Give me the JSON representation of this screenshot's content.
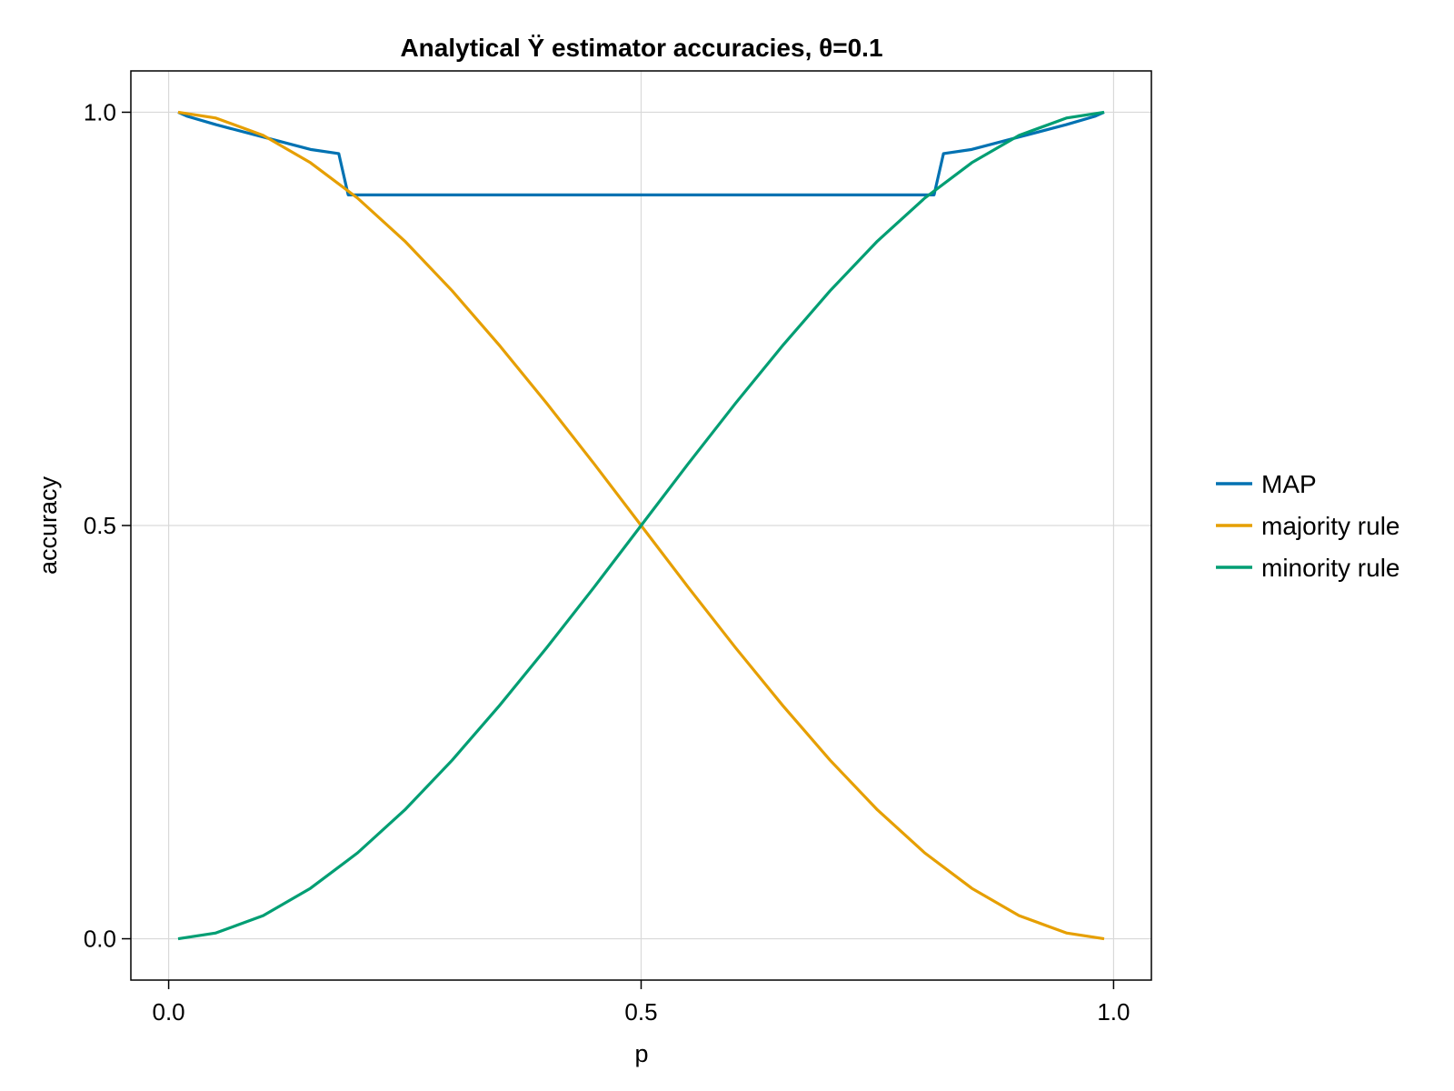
{
  "chart_data": {
    "type": "line",
    "title": "Analytical Ÿ estimator accuracies, θ=0.1",
    "xlabel": "p",
    "ylabel": "accuracy",
    "xlim": [
      -0.04,
      1.04
    ],
    "ylim": [
      -0.05,
      1.05
    ],
    "xticks": [
      {
        "value": 0.0,
        "label": "0.0"
      },
      {
        "value": 0.5,
        "label": "0.5"
      },
      {
        "value": 1.0,
        "label": "1.0"
      }
    ],
    "yticks": [
      {
        "value": 0.0,
        "label": "0.0"
      },
      {
        "value": 0.5,
        "label": "0.5"
      },
      {
        "value": 1.0,
        "label": "1.0"
      }
    ],
    "grid": true,
    "legend_position": "right",
    "series": [
      {
        "name": "MAP",
        "color": "#0072b2",
        "x": [
          0.01,
          0.02,
          0.05,
          0.1,
          0.15,
          0.18,
          0.19,
          0.3,
          0.4,
          0.5,
          0.6,
          0.7,
          0.81,
          0.82,
          0.85,
          0.9,
          0.95,
          0.98,
          0.99
        ],
        "y": [
          1.0,
          0.995,
          0.985,
          0.97,
          0.955,
          0.95,
          0.9,
          0.9,
          0.9,
          0.9,
          0.9,
          0.9,
          0.9,
          0.95,
          0.955,
          0.97,
          0.985,
          0.995,
          1.0
        ]
      },
      {
        "name": "majority rule",
        "color": "#e69f00",
        "x": [
          0.01,
          0.05,
          0.1,
          0.15,
          0.2,
          0.25,
          0.3,
          0.35,
          0.4,
          0.45,
          0.5,
          0.55,
          0.6,
          0.65,
          0.7,
          0.75,
          0.8,
          0.85,
          0.9,
          0.95,
          0.99
        ],
        "y": [
          1.0,
          0.993,
          0.972,
          0.939,
          0.896,
          0.844,
          0.784,
          0.718,
          0.648,
          0.575,
          0.5,
          0.425,
          0.352,
          0.282,
          0.216,
          0.156,
          0.104,
          0.061,
          0.028,
          0.007,
          0.0
        ]
      },
      {
        "name": "minority rule",
        "color": "#009e73",
        "x": [
          0.01,
          0.05,
          0.1,
          0.15,
          0.2,
          0.25,
          0.3,
          0.35,
          0.4,
          0.45,
          0.5,
          0.55,
          0.6,
          0.65,
          0.7,
          0.75,
          0.8,
          0.85,
          0.9,
          0.95,
          0.99
        ],
        "y": [
          0.0,
          0.007,
          0.028,
          0.061,
          0.104,
          0.156,
          0.216,
          0.282,
          0.352,
          0.425,
          0.5,
          0.575,
          0.648,
          0.718,
          0.784,
          0.844,
          0.896,
          0.939,
          0.972,
          0.993,
          1.0
        ]
      }
    ]
  }
}
